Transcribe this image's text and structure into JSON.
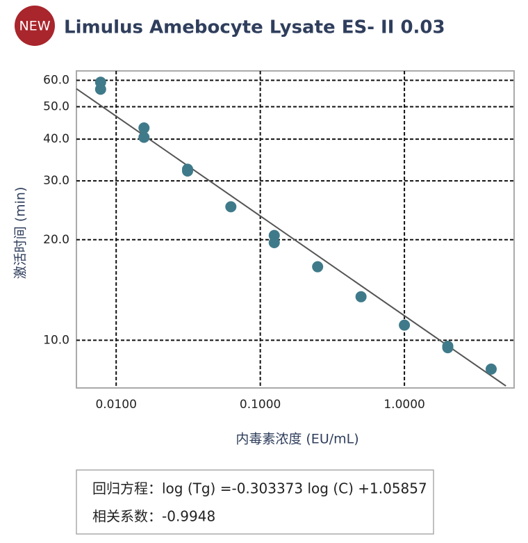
{
  "badge": "NEW",
  "chart_data": {
    "type": "scatter",
    "title": "Limulus Amebocyte Lysate ES- II 0.03",
    "x_label": "内毒素浓度 (EU/mL)",
    "y_label": "激活时间 (min)",
    "x": [
      0.0078,
      0.0078,
      0.0156,
      0.0156,
      0.0313,
      0.0313,
      0.0625,
      0.125,
      0.125,
      0.25,
      0.5,
      1,
      2,
      2,
      4
    ],
    "values": [
      59.2,
      56.4,
      43.2,
      40.5,
      32.5,
      32.1,
      25.1,
      20.6,
      19.6,
      16.6,
      13.5,
      11.1,
      9.6,
      9.5,
      8.2
    ],
    "color": "#3f7a8a",
    "trend_line": {
      "x": [
        0.0053,
        5.06
      ],
      "values": [
        56.6,
        7.3
      ],
      "color": "#555555"
    },
    "xlim": [
      0.0053,
      5.77
    ],
    "ylim": [
      7.2,
      64
    ],
    "x_log": true,
    "y_log": true,
    "grid": true,
    "xticks": [
      {
        "value": 0.01,
        "label": "0.0100"
      },
      {
        "value": 0.1,
        "label": "0.1000"
      },
      {
        "value": 1,
        "label": "1.0000"
      }
    ],
    "yticks": [
      {
        "value": 10,
        "label": "10.0"
      },
      {
        "value": 20,
        "label": "20.0"
      },
      {
        "value": 30,
        "label": "30.0"
      },
      {
        "value": 40,
        "label": "40.0"
      },
      {
        "value": 50,
        "label": "50.0"
      },
      {
        "value": 60,
        "label": "60.0"
      }
    ]
  },
  "equation_box": {
    "line1": "回归方程：log (Tg) =-0.303373 log (C) +1.05857",
    "line2": "相关系数：-0.9948"
  }
}
